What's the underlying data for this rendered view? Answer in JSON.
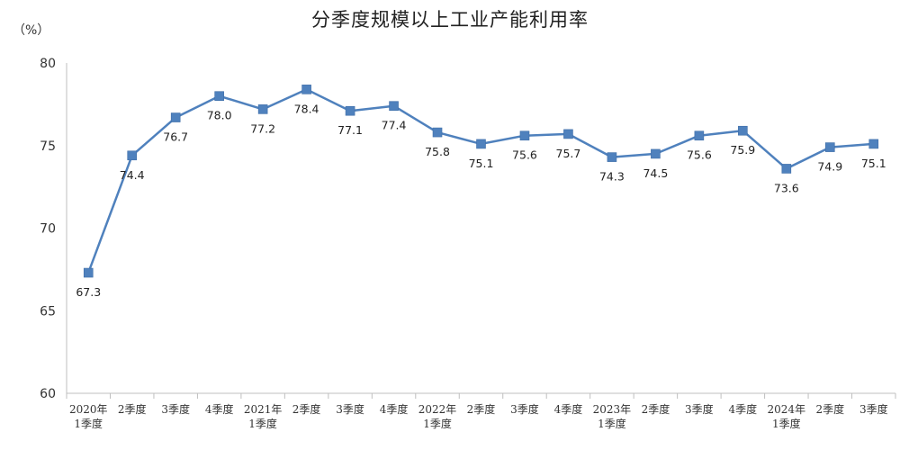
{
  "chart_data": {
    "type": "line",
    "title": "分季度规模以上工业产能利用率",
    "y_unit": "（%）",
    "ylim": [
      60,
      80
    ],
    "yticks": [
      "60",
      "65",
      "70",
      "75",
      "80"
    ],
    "categories": [
      [
        "2020年",
        "1季度"
      ],
      [
        "2季度"
      ],
      [
        "3季度"
      ],
      [
        "4季度"
      ],
      [
        "2021年",
        "1季度"
      ],
      [
        "2季度"
      ],
      [
        "3季度"
      ],
      [
        "4季度"
      ],
      [
        "2022年",
        "1季度"
      ],
      [
        "2季度"
      ],
      [
        "3季度"
      ],
      [
        "4季度"
      ],
      [
        "2023年",
        "1季度"
      ],
      [
        "2季度"
      ],
      [
        "3季度"
      ],
      [
        "4季度"
      ],
      [
        "2024年",
        "1季度"
      ],
      [
        "2季度"
      ],
      [
        "3季度"
      ]
    ],
    "values": [
      67.3,
      74.4,
      76.7,
      78.0,
      77.2,
      78.4,
      77.1,
      77.4,
      75.8,
      75.1,
      75.6,
      75.7,
      74.3,
      74.5,
      75.6,
      75.9,
      73.6,
      74.9,
      75.1
    ],
    "value_labels": [
      "67.3",
      "74.4",
      "76.7",
      "78.0",
      "77.2",
      "78.4",
      "77.1",
      "77.4",
      "75.8",
      "75.1",
      "75.6",
      "75.7",
      "74.3",
      "74.5",
      "75.6",
      "75.9",
      "73.6",
      "74.9",
      "75.1"
    ],
    "label_positions": [
      "below",
      "below",
      "below",
      "below",
      "below",
      "below",
      "below",
      "below",
      "below",
      "below",
      "below",
      "below",
      "below",
      "below",
      "below",
      "below",
      "below",
      "below",
      "below"
    ],
    "series_color": "#4f81bd",
    "axis_color": "#bfbfbf",
    "grid": false,
    "legend": "none"
  }
}
